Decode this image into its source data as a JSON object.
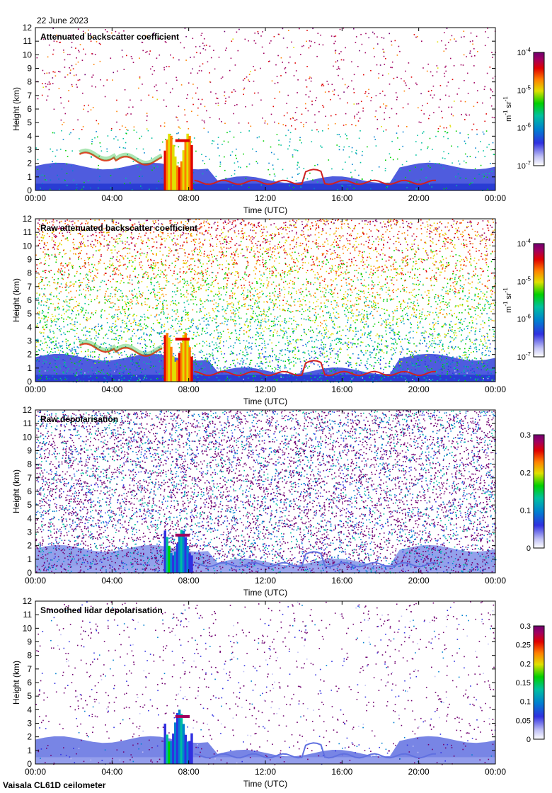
{
  "header": {
    "date": "22 June 2023"
  },
  "footer": {
    "instrument": "Vaisala CL61D ceilometer"
  },
  "chart_data": [
    {
      "type": "heatmap",
      "title": "Attenuated backscatter coefficient",
      "xlabel": "Time (UTC)",
      "ylabel": "Height (km)",
      "x_ticks": [
        "00:00",
        "04:00",
        "08:00",
        "12:00",
        "16:00",
        "20:00",
        "00:00"
      ],
      "y_ticks": [
        "0",
        "1",
        "2",
        "3",
        "4",
        "5",
        "6",
        "7",
        "8",
        "9",
        "10",
        "11",
        "12"
      ],
      "xlim_hours": [
        0,
        24
      ],
      "ylim_km": [
        0,
        12
      ],
      "colorbar": {
        "scale": "log",
        "range": [
          1e-07,
          0.0001
        ],
        "ticks": [
          "10",
          "10",
          "10",
          "10"
        ],
        "tick_exponents": [
          "-7",
          "-6",
          "-5",
          "-4"
        ],
        "unit_parts": [
          "m",
          "-1",
          " sr",
          "-1"
        ]
      },
      "features": {
        "boundary_layer_top_km": 1.8,
        "cloud_layer_km": [
          2.2,
          3.0
        ],
        "fog_or_cloud_column_hours": [
          6.7,
          8.2
        ],
        "fog_height_km": 4.2,
        "background_noise": "sparse"
      }
    },
    {
      "type": "heatmap",
      "title": "Raw attenuated backscatter coefficient",
      "xlabel": "Time (UTC)",
      "ylabel": "Height (km)",
      "x_ticks": [
        "00:00",
        "04:00",
        "08:00",
        "12:00",
        "16:00",
        "20:00",
        "00:00"
      ],
      "y_ticks": [
        "0",
        "1",
        "2",
        "3",
        "4",
        "5",
        "6",
        "7",
        "8",
        "9",
        "10",
        "11",
        "12"
      ],
      "xlim_hours": [
        0,
        24
      ],
      "ylim_km": [
        0,
        12
      ],
      "colorbar": {
        "scale": "log",
        "range": [
          1e-07,
          0.0001
        ],
        "ticks": [
          "10",
          "10",
          "10",
          "10"
        ],
        "tick_exponents": [
          "-7",
          "-6",
          "-5",
          "-4"
        ],
        "unit_parts": [
          "m",
          "-1",
          " sr",
          "-1"
        ]
      },
      "features": {
        "boundary_layer_top_km": 1.8,
        "cloud_layer_km": [
          2.2,
          3.0
        ],
        "fog_or_cloud_column_hours": [
          6.7,
          8.2
        ],
        "fog_height_km": 3.6,
        "background_noise": "dense"
      }
    },
    {
      "type": "heatmap",
      "title": "Raw depolarisation",
      "xlabel": "Time (UTC)",
      "ylabel": "Height (km)",
      "x_ticks": [
        "00:00",
        "04:00",
        "08:00",
        "12:00",
        "16:00",
        "20:00",
        "00:00"
      ],
      "y_ticks": [
        "0",
        "1",
        "2",
        "3",
        "4",
        "5",
        "6",
        "7",
        "8",
        "9",
        "10",
        "11",
        "12"
      ],
      "xlim_hours": [
        0,
        24
      ],
      "ylim_km": [
        0,
        12
      ],
      "colorbar": {
        "scale": "linear",
        "range": [
          0,
          0.3
        ],
        "ticks": [
          "0",
          "0.1",
          "0.2",
          "0.3"
        ]
      },
      "features": {
        "boundary_layer_top_km": 1.8,
        "fog_or_cloud_column_hours": [
          6.7,
          8.2
        ],
        "fog_height_km": 3.2,
        "background_noise": "very dense"
      }
    },
    {
      "type": "heatmap",
      "title": "Smoothed lidar depolarisation",
      "xlabel": "Time (UTC)",
      "ylabel": "Height (km)",
      "x_ticks": [
        "00:00",
        "04:00",
        "08:00",
        "12:00",
        "16:00",
        "20:00",
        "00:00"
      ],
      "y_ticks": [
        "0",
        "1",
        "2",
        "3",
        "4",
        "5",
        "6",
        "7",
        "8",
        "9",
        "10",
        "11",
        "12"
      ],
      "xlim_hours": [
        0,
        24
      ],
      "ylim_km": [
        0,
        12
      ],
      "colorbar": {
        "scale": "linear",
        "range": [
          0,
          0.3
        ],
        "ticks": [
          "0",
          "0.05",
          "0.1",
          "0.15",
          "0.2",
          "0.25",
          "0.3"
        ]
      },
      "features": {
        "boundary_layer_top_km": 1.8,
        "fog_or_cloud_column_hours": [
          6.7,
          8.2
        ],
        "fog_height_km": 4.0,
        "background_noise": "sparse"
      }
    }
  ],
  "colors": {
    "colormap": [
      "#ffffff",
      "#c0c0f4",
      "#3030e0",
      "#0080d0",
      "#00c0a0",
      "#00d000",
      "#e0e000",
      "#ff8000",
      "#e00000",
      "#a00060",
      "#700070"
    ]
  }
}
